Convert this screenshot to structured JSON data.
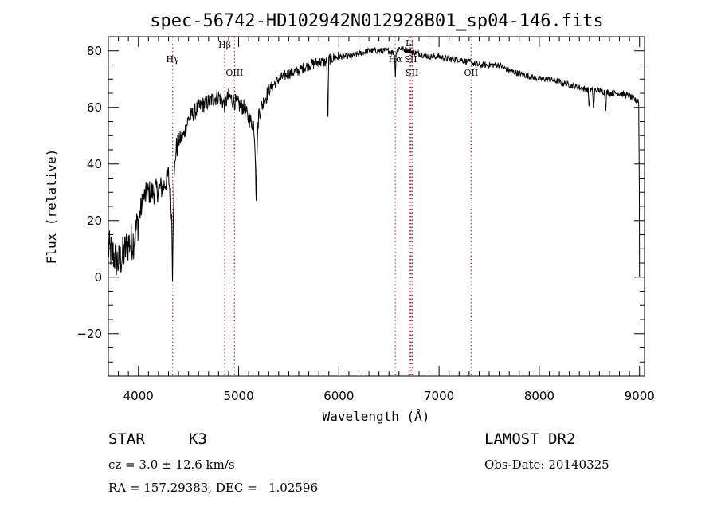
{
  "chart_data": {
    "type": "line",
    "title": "spec-56742-HD102942N012928B01_sp04-146.fits",
    "xlabel": "Wavelength (Å)",
    "ylabel": "Flux (relative)",
    "xlim": [
      3700,
      9050
    ],
    "ylim": [
      -35,
      85
    ],
    "x_ticks": [
      4000,
      5000,
      6000,
      7000,
      8000,
      9000
    ],
    "y_ticks": [
      -20,
      0,
      20,
      40,
      60,
      80
    ],
    "grid": false,
    "series": [
      {
        "name": "Flux",
        "anchors": [
          [
            3700,
            10
          ],
          [
            3750,
            8
          ],
          [
            3800,
            5
          ],
          [
            3850,
            8
          ],
          [
            3900,
            12
          ],
          [
            3950,
            13
          ],
          [
            4000,
            20
          ],
          [
            4050,
            28
          ],
          [
            4100,
            30
          ],
          [
            4150,
            30
          ],
          [
            4200,
            31
          ],
          [
            4250,
            32
          ],
          [
            4300,
            36
          ],
          [
            4340,
            20
          ],
          [
            4370,
            44
          ],
          [
            4400,
            48
          ],
          [
            4450,
            50
          ],
          [
            4500,
            56
          ],
          [
            4600,
            60
          ],
          [
            4700,
            62
          ],
          [
            4800,
            64
          ],
          [
            4861,
            61
          ],
          [
            4900,
            64
          ],
          [
            4959,
            62
          ],
          [
            5000,
            61
          ],
          [
            5050,
            60
          ],
          [
            5100,
            56
          ],
          [
            5150,
            54
          ],
          [
            5175,
            40
          ],
          [
            5200,
            58
          ],
          [
            5300,
            66
          ],
          [
            5400,
            70
          ],
          [
            5500,
            72
          ],
          [
            5600,
            73
          ],
          [
            5700,
            75
          ],
          [
            5800,
            76
          ],
          [
            5890,
            76
          ],
          [
            5900,
            77
          ],
          [
            6000,
            78
          ],
          [
            6100,
            78
          ],
          [
            6200,
            79
          ],
          [
            6300,
            80
          ],
          [
            6400,
            80
          ],
          [
            6500,
            80
          ],
          [
            6563,
            79
          ],
          [
            6600,
            81
          ],
          [
            6700,
            80
          ],
          [
            6800,
            79
          ],
          [
            6900,
            78
          ],
          [
            7000,
            78
          ],
          [
            7100,
            77
          ],
          [
            7200,
            77
          ],
          [
            7300,
            76
          ],
          [
            7400,
            75
          ],
          [
            7500,
            75
          ],
          [
            7600,
            75
          ],
          [
            7700,
            73
          ],
          [
            7800,
            72
          ],
          [
            7900,
            71
          ],
          [
            8000,
            70
          ],
          [
            8100,
            70
          ],
          [
            8200,
            69
          ],
          [
            8300,
            68
          ],
          [
            8400,
            67
          ],
          [
            8500,
            66
          ],
          [
            8600,
            66
          ],
          [
            8700,
            65
          ],
          [
            8800,
            65
          ],
          [
            8900,
            64
          ],
          [
            8980,
            62
          ],
          [
            9000,
            0
          ]
        ],
        "absorption_dips": [
          {
            "center": 4340,
            "depth": 18
          },
          {
            "center": 5175,
            "depth": 14
          },
          {
            "center": 5890,
            "depth": 24
          },
          {
            "center": 6563,
            "depth": 8
          },
          {
            "center": 8498,
            "depth": 7
          },
          {
            "center": 8542,
            "depth": 8
          },
          {
            "center": 8662,
            "depth": 7
          }
        ]
      }
    ],
    "line_markers": [
      {
        "label": "Hγ",
        "wavelength": 4341,
        "color": "#c84040"
      },
      {
        "label": "Hβ",
        "wavelength": 4861,
        "color": "#c84040"
      },
      {
        "label": "OIII",
        "wavelength": 4959,
        "color": "#c84040"
      },
      {
        "label": "Hα",
        "wavelength": 6563,
        "color": "#c84040"
      },
      {
        "label": "Li",
        "wavelength": 6708,
        "color": "#c84040"
      },
      {
        "label": "SII",
        "wavelength": 6717,
        "color": "#d02020"
      },
      {
        "label": "SII",
        "wavelength": 6731,
        "color": "#d02020"
      },
      {
        "label": "OII",
        "wavelength": 7320,
        "color": "#c84040"
      }
    ]
  },
  "info": {
    "class_label": "STAR",
    "subclass_label": "K3",
    "cz_text": "cz = 3.0 ± 12.6 km/s",
    "radec_text": "RA = 157.29383, DEC =   1.02596",
    "survey_label": "LAMOST DR2",
    "obs_date_text": "Obs-Date: 20140325"
  },
  "colors": {
    "axis": "#000000",
    "spectrum": "#000000",
    "marker": "#c84040"
  }
}
